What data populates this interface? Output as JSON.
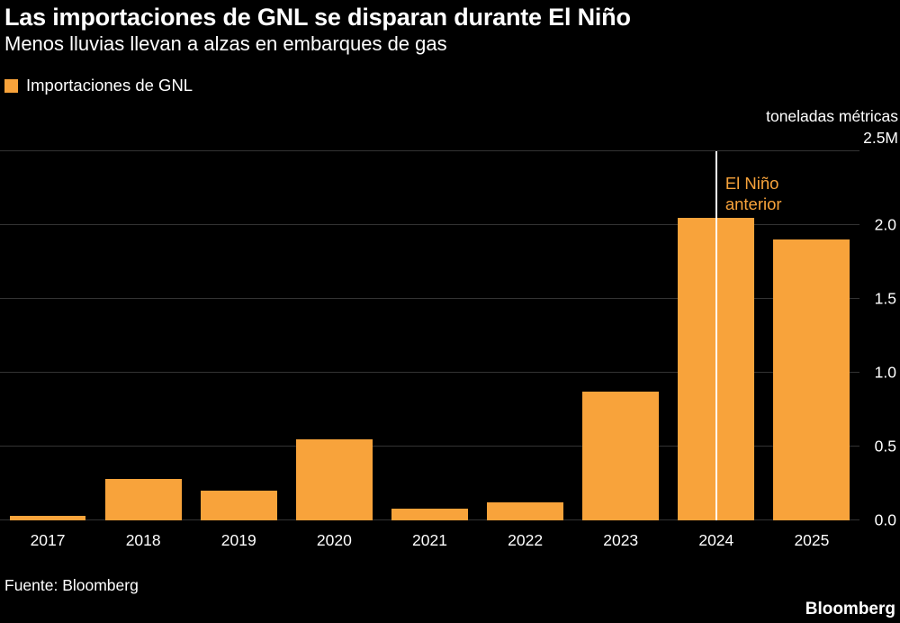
{
  "header": {
    "title": "Las importaciones de GNL se disparan durante El Niño",
    "subtitle": "Menos lluvias llevan a alzas en embarques de gas"
  },
  "legend": {
    "label": "Importaciones de GNL"
  },
  "axis": {
    "unit_label": "toneladas métricas",
    "top_tick": "2.5M"
  },
  "footer": {
    "source": "Fuente: Bloomberg",
    "brand": "Bloomberg"
  },
  "colors": {
    "background": "#000000",
    "bar": "#f8a33b",
    "grid": "#333333",
    "text": "#ffffff",
    "annotation_line": "#ffffff",
    "annotation_text": "#f8a33b"
  },
  "chart_data": {
    "type": "bar",
    "title": "Las importaciones de GNL se disparan durante El Niño",
    "subtitle": "Menos lluvias llevan a alzas en embarques de gas",
    "series_name": "Importaciones de GNL",
    "categories": [
      "2017",
      "2018",
      "2019",
      "2020",
      "2021",
      "2022",
      "2023",
      "2024",
      "2025"
    ],
    "values": [
      0.03,
      0.28,
      0.2,
      0.55,
      0.08,
      0.12,
      0.87,
      2.05,
      1.9
    ],
    "xlabel": "",
    "ylabel": "toneladas métricas",
    "ylim": [
      0,
      2.5
    ],
    "yticks": [
      0,
      0.5,
      1,
      1.5,
      2,
      2.5
    ],
    "ytick_labels": [
      "0.0",
      "0.5",
      "1.0",
      "1.5",
      "2.0",
      "2.5M"
    ],
    "grid": "horizontal",
    "legend_position": "top-left",
    "annotation": {
      "type": "vline",
      "x_category": "2024",
      "text": [
        "El Niño",
        "anterior"
      ]
    }
  }
}
